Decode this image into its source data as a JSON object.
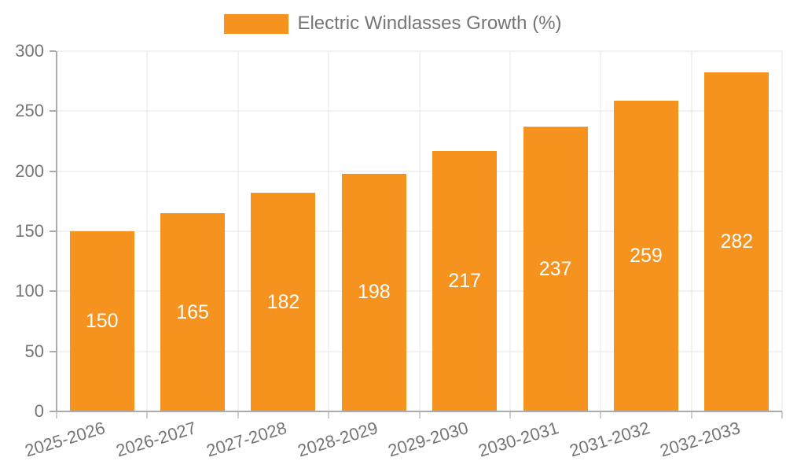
{
  "legend": {
    "label": "Electric Windlasses Growth (%)"
  },
  "chart_data": {
    "type": "bar",
    "title": "Electric Windlasses Growth (%)",
    "categories": [
      "2025-2026",
      "2026-2027",
      "2027-2028",
      "2028-2029",
      "2029-2030",
      "2030-2031",
      "2031-2032",
      "2032-2033"
    ],
    "values": [
      150,
      165,
      182,
      198,
      217,
      237,
      259,
      282
    ],
    "xlabel": "",
    "ylabel": "",
    "ylim": [
      0,
      300
    ],
    "ytick_step": 50,
    "yticks": [
      0,
      50,
      100,
      150,
      200,
      250,
      300
    ],
    "grid": "both",
    "legend_position": "top-center",
    "colors": {
      "bar": "#F6921E",
      "value_label": "#FFFFFF",
      "axis_text": "#757575",
      "grid": "#E6E6E6",
      "axis_line": "#ABABAB"
    }
  }
}
